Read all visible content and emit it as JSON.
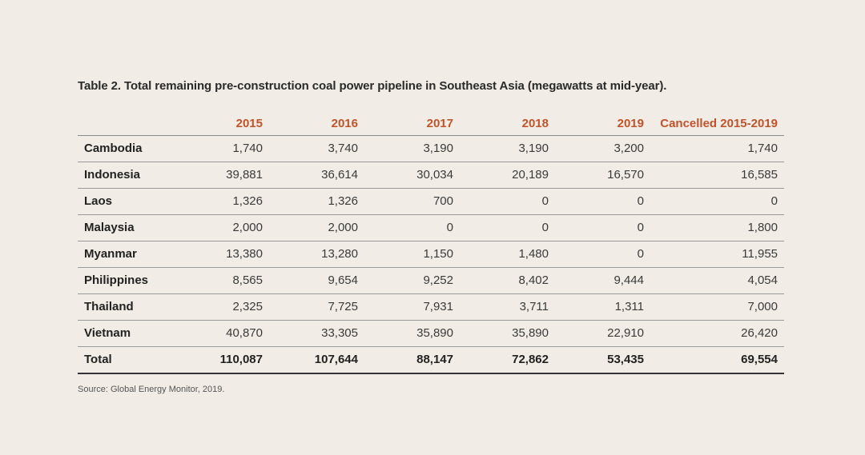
{
  "caption": "Table 2. Total remaining pre-construction coal power pipeline in Southeast Asia (megawatts at mid-year).",
  "header": {
    "blank": "",
    "col_2015": "2015",
    "col_2016": "2016",
    "col_2017": "2017",
    "col_2018": "2018",
    "col_2019": "2019",
    "col_cancelled": "Cancelled 2015-2019"
  },
  "accent_color": "#c0532a",
  "rows": [
    {
      "country": "Cambodia",
      "v2015": "1,740",
      "v2016": "3,740",
      "v2017": "3,190",
      "v2018": "3,190",
      "v2019": "3,200",
      "cancelled": "1,740"
    },
    {
      "country": "Indonesia",
      "v2015": "39,881",
      "v2016": "36,614",
      "v2017": "30,034",
      "v2018": "20,189",
      "v2019": "16,570",
      "cancelled": "16,585"
    },
    {
      "country": "Laos",
      "v2015": "1,326",
      "v2016": "1,326",
      "v2017": "700",
      "v2018": "0",
      "v2019": "0",
      "cancelled": "0"
    },
    {
      "country": "Malaysia",
      "v2015": "2,000",
      "v2016": "2,000",
      "v2017": "0",
      "v2018": "0",
      "v2019": "0",
      "cancelled": "1,800"
    },
    {
      "country": "Myanmar",
      "v2015": "13,380",
      "v2016": "13,280",
      "v2017": "1,150",
      "v2018": "1,480",
      "v2019": "0",
      "cancelled": "11,955"
    },
    {
      "country": "Philippines",
      "v2015": "8,565",
      "v2016": "9,654",
      "v2017": "9,252",
      "v2018": "8,402",
      "v2019": "9,444",
      "cancelled": "4,054"
    },
    {
      "country": "Thailand",
      "v2015": "2,325",
      "v2016": "7,725",
      "v2017": "7,931",
      "v2018": "3,711",
      "v2019": "1,311",
      "cancelled": "7,000"
    },
    {
      "country": "Vietnam",
      "v2015": "40,870",
      "v2016": "33,305",
      "v2017": "35,890",
      "v2018": "35,890",
      "v2019": "22,910",
      "cancelled": "26,420"
    }
  ],
  "total": {
    "country": "Total",
    "v2015": "110,087",
    "v2016": "107,644",
    "v2017": "88,147",
    "v2018": "72,862",
    "v2019": "53,435",
    "cancelled": "69,554"
  },
  "source": "Source: Global Energy Monitor, 2019."
}
